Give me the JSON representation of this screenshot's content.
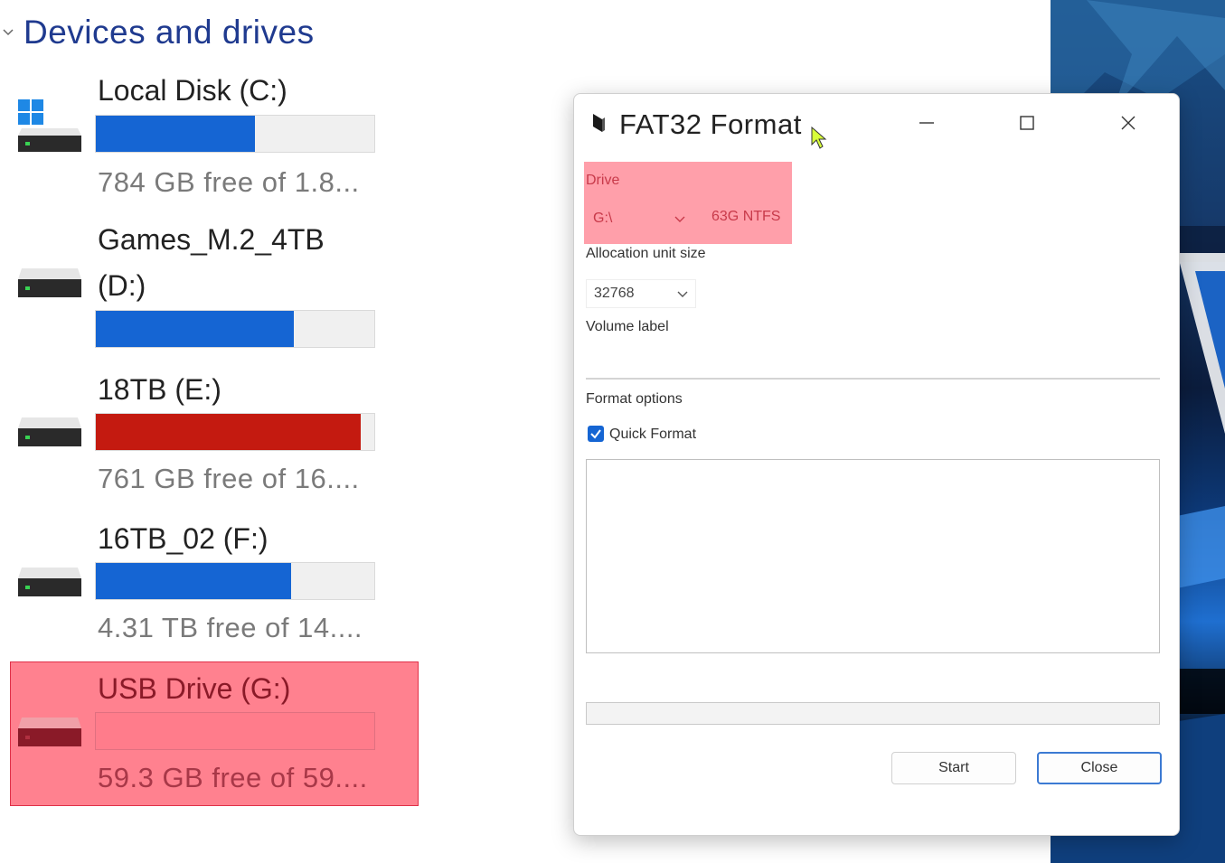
{
  "explorer": {
    "section_title": "Devices and drives",
    "drives": [
      {
        "name": "Local Disk (C:)",
        "free_text": "784 GB free of 1.8...",
        "used_fraction": 0.57,
        "bar_color": "#1565d3",
        "icon": "windows-drive-icon"
      },
      {
        "name_line1": "Games_M.2_4TB",
        "name_line2": "(D:)",
        "used_fraction": 0.71,
        "bar_color": "#1565d3",
        "icon": "hard-drive-icon"
      },
      {
        "name": "18TB (E:)",
        "free_text": "761 GB free of 16....",
        "used_fraction": 0.95,
        "bar_color": "#c41a10",
        "icon": "hard-drive-icon"
      },
      {
        "name": "16TB_02 (F:)",
        "free_text": "4.31 TB free of 14....",
        "used_fraction": 0.7,
        "bar_color": "#1565d3",
        "icon": "hard-drive-icon"
      },
      {
        "name": "USB Drive (G:)",
        "free_text": "59.3 GB free of 59....",
        "used_fraction": 0.0,
        "bar_color": "#1565d3",
        "icon": "usb-drive-icon",
        "highlighted": true
      }
    ]
  },
  "dialog": {
    "title": "FAT32 Format",
    "drive_label": "Drive",
    "drive_value": "G:\\",
    "drive_info": "63G NTFS",
    "allocation_label": "Allocation unit size",
    "allocation_value": "32768",
    "volume_label": "Volume label",
    "volume_value": "",
    "format_options_label": "Format options",
    "quick_format_label": "Quick Format",
    "quick_format_checked": true,
    "start_label": "Start",
    "close_label": "Close"
  },
  "colors": {
    "accent": "#1565d3",
    "warning": "#c41a10",
    "highlight": "#ff5064"
  }
}
